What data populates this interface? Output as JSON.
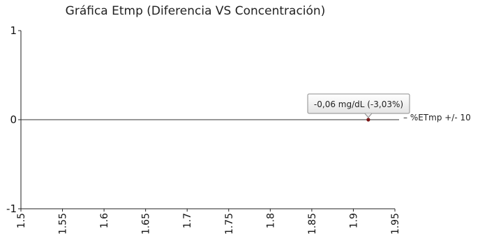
{
  "chart_data": {
    "type": "scatter",
    "title": "Gráfica Etmp (Diferencia VS Concentración)",
    "xlabel": "",
    "ylabel": "",
    "xlim": [
      1.5,
      1.95
    ],
    "ylim": [
      -1,
      1
    ],
    "x_ticks": [
      "1.5",
      "1.55",
      "1.6",
      "1.65",
      "1.7",
      "1.75",
      "1.8",
      "1.85",
      "1.9",
      "1.95"
    ],
    "y_ticks": [
      "1",
      "0",
      "-1"
    ],
    "grid": false,
    "series": [
      {
        "name": "%ETmp +/- 10",
        "points": [
          {
            "x": 1.918,
            "y": 0
          }
        ],
        "color": "#7a1515"
      }
    ],
    "reference_line": {
      "y": 0,
      "color": "#333333"
    },
    "annotation": {
      "text": "-0,06 mg/dL (-3,03%)",
      "x": 1.918,
      "y": 0
    },
    "legend": {
      "entry": "%ETmp +/- 10",
      "placement": "right"
    }
  }
}
